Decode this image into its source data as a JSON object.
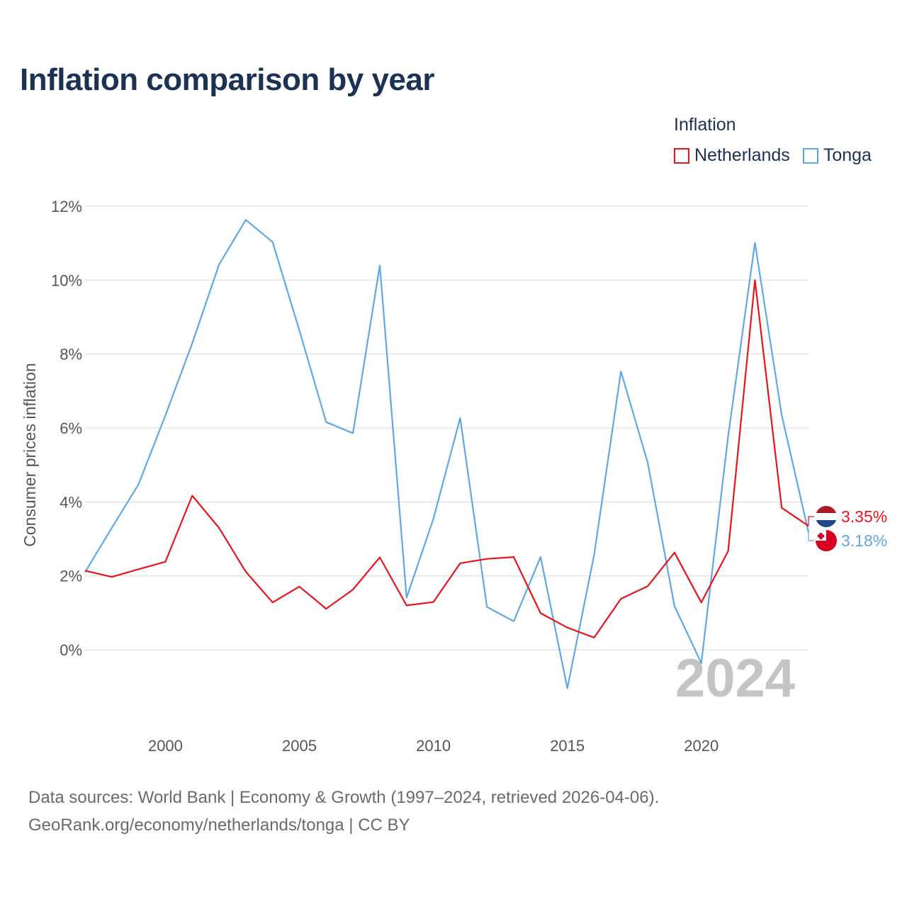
{
  "title": "Inflation comparison by year",
  "legend": {
    "title": "Inflation",
    "items": [
      {
        "name": "Netherlands",
        "color": "#e8141c"
      },
      {
        "name": "Tonga",
        "color": "#5ea8e6"
      }
    ]
  },
  "source": {
    "line1": "Data sources: World Bank | Economy & Growth (1997–2024, retrieved 2026-04-06).",
    "line2": "GeoRank.org/economy/netherlands/tonga | CC BY"
  },
  "chart_data": {
    "type": "line",
    "title": "Inflation comparison by year",
    "xlabel": "",
    "ylabel": "Consumer prices inflation",
    "year_label": "2024",
    "xlim": [
      1997,
      2024
    ],
    "ylim": [
      -2,
      12
    ],
    "yticks": [
      0,
      2,
      4,
      6,
      8,
      10,
      12
    ],
    "ytick_labels": [
      "0%",
      "2%",
      "4%",
      "6%",
      "8%",
      "10%",
      "12%"
    ],
    "xticks": [
      2000,
      2005,
      2010,
      2015,
      2020
    ],
    "xtick_labels": [
      "2000",
      "2005",
      "2010",
      "2015",
      "2020"
    ],
    "x": [
      1997,
      1998,
      1999,
      2000,
      2001,
      2002,
      2003,
      2004,
      2005,
      2006,
      2007,
      2008,
      2009,
      2010,
      2011,
      2012,
      2013,
      2014,
      2015,
      2016,
      2017,
      2018,
      2019,
      2020,
      2021,
      2022,
      2023,
      2024
    ],
    "series": [
      {
        "name": "Netherlands",
        "color": "#e8141c",
        "end_label": "3.35%",
        "values": [
          2.14,
          1.97,
          2.18,
          2.38,
          4.17,
          3.3,
          2.11,
          1.28,
          1.71,
          1.11,
          1.63,
          2.5,
          1.2,
          1.29,
          2.34,
          2.46,
          2.51,
          0.99,
          0.6,
          0.33,
          1.38,
          1.72,
          2.63,
          1.28,
          2.67,
          10.0,
          3.84,
          3.35
        ]
      },
      {
        "name": "Tonga",
        "color": "#5ea8e6",
        "end_label": "3.18%",
        "values": [
          2.1,
          3.3,
          4.48,
          6.34,
          8.29,
          10.42,
          11.63,
          11.03,
          8.64,
          6.16,
          5.86,
          10.4,
          1.41,
          3.54,
          6.27,
          1.16,
          0.77,
          2.51,
          -1.04,
          2.57,
          7.53,
          5.06,
          1.18,
          -0.36,
          5.78,
          11.01,
          6.35,
          3.18
        ]
      }
    ]
  }
}
